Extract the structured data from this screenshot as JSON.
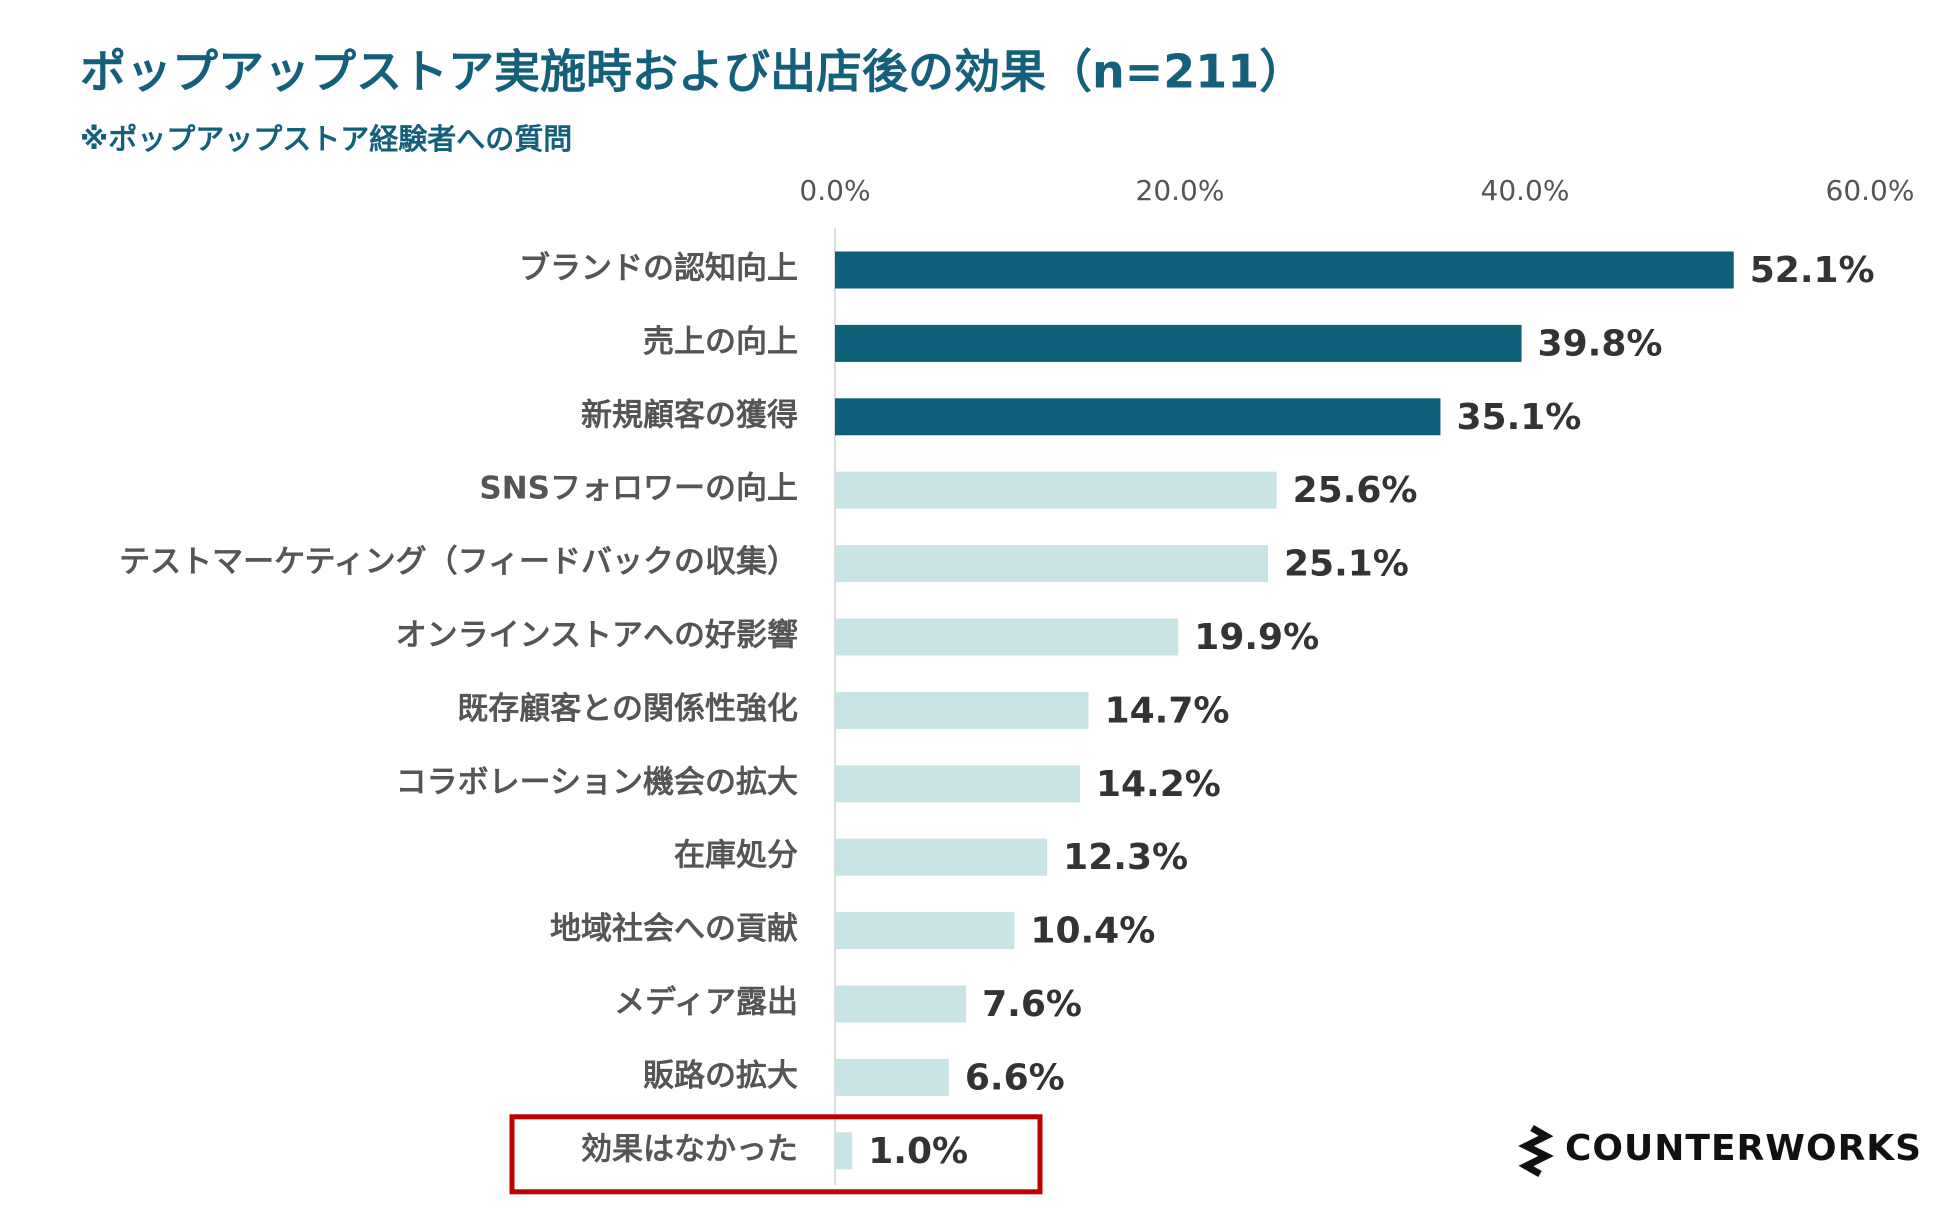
{
  "chart_data": {
    "type": "bar",
    "orientation": "horizontal",
    "title": "ポップアップストア実施時および出店後の効果（n=211）",
    "subtitle": "※ポップアップストア経験者への質問",
    "categories": [
      "ブランドの認知向上",
      "売上の向上",
      "新規顧客の獲得",
      "SNSフォロワーの向上",
      "テストマーケティング（フィードバックの収集）",
      "オンラインストアへの好影響",
      "既存顧客との関係性強化",
      "コラボレーション機会の拡大",
      "在庫処分",
      "地域社会への貢献",
      "メディア露出",
      "販路の拡大",
      "効果はなかった"
    ],
    "values": [
      52.1,
      39.8,
      35.1,
      25.6,
      25.1,
      19.9,
      14.7,
      14.2,
      12.3,
      10.4,
      7.6,
      6.6,
      1.0
    ],
    "value_labels": [
      "52.1%",
      "39.8%",
      "35.1%",
      "25.6%",
      "25.1%",
      "19.9%",
      "14.7%",
      "14.2%",
      "12.3%",
      "10.4%",
      "7.6%",
      "6.6%",
      "1.0%"
    ],
    "colors": [
      "#0e5f78",
      "#0e5f78",
      "#0e5f78",
      "#c9e4e4",
      "#c9e4e4",
      "#c9e4e4",
      "#c9e4e4",
      "#c9e4e4",
      "#c9e4e4",
      "#c9e4e4",
      "#c9e4e4",
      "#c9e4e4",
      "#c9e4e4"
    ],
    "xlim": [
      0,
      60
    ],
    "xticks": [
      {
        "value": 0,
        "label": "0.0%"
      },
      {
        "value": 20,
        "label": "20.0%"
      },
      {
        "value": 40,
        "label": "40.0%"
      },
      {
        "value": 60,
        "label": "60.0%"
      }
    ],
    "highlight_category": 12,
    "highlight_color": "#c00000",
    "logo_text": "COUNTERWORKS"
  }
}
